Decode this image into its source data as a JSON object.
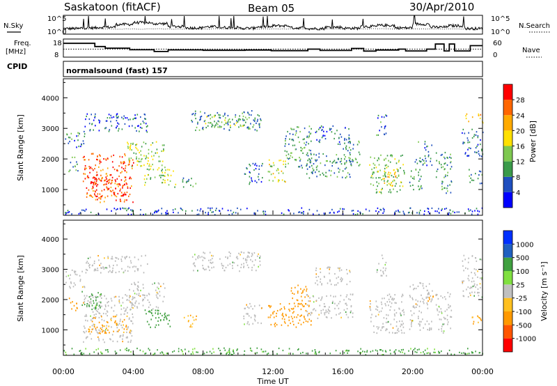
{
  "header": {
    "station": "Saskatoon (fitACF)",
    "beam": "Beam 05",
    "date": "30/Apr/2010"
  },
  "strip_labels": {
    "nsky": "N.Sky",
    "nsearch": "N.Search",
    "freq_line1": "Freq.",
    "freq_line2": "[MHz]",
    "nave": "Nave",
    "cpid": "CPID",
    "cpid_value": "normalsound (fast) 157"
  },
  "colors": {
    "power_scale": [
      "#0000ff",
      "#1f4fbf",
      "#3a9a4a",
      "#7ec850",
      "#ffe000",
      "#ffaa00",
      "#ff6600",
      "#ff0000"
    ],
    "velocity_scale": [
      "#ff0000",
      "#ff5500",
      "#ff9900",
      "#ffc020",
      "#c0c0c0",
      "#80e040",
      "#40a040",
      "#2060c0",
      "#0030ff"
    ],
    "ground_scatter": "#bbbbbb"
  },
  "chart_data": [
    {
      "type": "line",
      "panel": "noise",
      "y_ticks": [
        "10^5",
        "10^0"
      ],
      "y_ticks_right": [
        "10^5",
        "10^0"
      ],
      "series": [
        {
          "name": "N.Sky",
          "values": [
            1.4,
            1.6,
            1.8,
            2.6,
            3.1,
            2.8,
            2.0,
            1.6,
            1.9,
            1.7,
            1.5,
            1.9,
            2.2,
            1.6,
            1.4,
            1.8,
            1.5,
            2.0,
            2.3,
            1.6,
            2.7,
            1.8,
            2.2,
            1.4
          ]
        }
      ],
      "x": [
        0,
        1,
        2,
        3,
        4,
        5,
        6,
        7,
        8,
        9,
        10,
        11,
        12,
        13,
        14,
        15,
        16,
        17,
        18,
        19,
        20,
        21,
        22,
        23
      ]
    },
    {
      "type": "line",
      "panel": "frequency",
      "y_ticks": [
        "18",
        "8"
      ],
      "y_ticks_right": [
        "60",
        "0"
      ],
      "ylim": [
        8,
        18
      ],
      "series": [
        {
          "name": "Freq.",
          "values": [
            [
              0,
              16.5
            ],
            [
              1.8,
              14.3
            ],
            [
              2.4,
              13.2
            ],
            [
              3.8,
              12.1
            ],
            [
              5.2,
              10.9
            ],
            [
              6.0,
              12.0
            ],
            [
              8.0,
              11.7
            ],
            [
              10.4,
              11.9
            ],
            [
              11.9,
              11.5
            ],
            [
              14.0,
              12.5
            ],
            [
              14.7,
              11.6
            ],
            [
              16.5,
              13.0
            ],
            [
              17.2,
              11.2
            ],
            [
              17.9,
              11.9
            ],
            [
              19.2,
              12.5
            ],
            [
              19.6,
              11.3
            ],
            [
              20.8,
              12.5
            ],
            [
              21.3,
              16.0
            ],
            [
              21.8,
              11.3
            ],
            [
              22.1,
              16.0
            ],
            [
              22.4,
              11.3
            ],
            [
              23.3,
              14.9
            ],
            [
              24,
              14.9
            ]
          ]
        },
        {
          "name": "Nave",
          "values": [
            [
              0,
              12.5
            ],
            [
              24,
              12.5
            ]
          ]
        }
      ],
      "xlim": [
        0,
        24
      ]
    },
    {
      "type": "heatmap",
      "panel": "power",
      "ylabel": "Slant Range [km]",
      "y_ticks": [
        1000,
        2000,
        3000,
        4000
      ],
      "ylim": [
        180,
        4600
      ],
      "xlim": [
        0,
        24
      ],
      "colorbar_label": "Power [dB]",
      "colorbar_ticks": [
        4,
        8,
        12,
        16,
        20,
        24,
        28
      ],
      "regions": [
        {
          "t0": 1.1,
          "t1": 4.0,
          "r0": 600,
          "r1": 2200,
          "level": 26
        },
        {
          "t0": 1.5,
          "t1": 3.8,
          "r0": 800,
          "r1": 1500,
          "level": 29
        },
        {
          "t0": 0.1,
          "t1": 1.2,
          "r0": 2400,
          "r1": 3000,
          "level": 8
        },
        {
          "t0": 0.2,
          "t1": 0.8,
          "r0": 1600,
          "r1": 2100,
          "level": 10
        },
        {
          "t0": 1.2,
          "t1": 4.8,
          "r0": 2900,
          "r1": 3500,
          "level": 6
        },
        {
          "t0": 3.6,
          "t1": 5.8,
          "r0": 1700,
          "r1": 2600,
          "level": 14
        },
        {
          "t0": 4.6,
          "t1": 6.4,
          "r0": 1100,
          "r1": 1700,
          "level": 14
        },
        {
          "t0": 6.8,
          "t1": 7.6,
          "r0": 1100,
          "r1": 1500,
          "level": 11
        },
        {
          "t0": 7.3,
          "t1": 11.3,
          "r0": 2950,
          "r1": 3600,
          "level": 9
        },
        {
          "t0": 8.0,
          "t1": 10.5,
          "r0": 3050,
          "r1": 3450,
          "level": 13
        },
        {
          "t0": 10.3,
          "t1": 11.4,
          "r0": 1200,
          "r1": 1900,
          "level": 7
        },
        {
          "t0": 11.7,
          "t1": 12.7,
          "r0": 1200,
          "r1": 2000,
          "level": 16
        },
        {
          "t0": 12.6,
          "t1": 14.2,
          "r0": 1700,
          "r1": 3100,
          "level": 11
        },
        {
          "t0": 13.9,
          "t1": 16.6,
          "r0": 1400,
          "r1": 2200,
          "level": 10
        },
        {
          "t0": 14.4,
          "t1": 16.4,
          "r0": 2500,
          "r1": 3100,
          "level": 8
        },
        {
          "t0": 16.0,
          "t1": 17.0,
          "r0": 1800,
          "r1": 2600,
          "level": 9
        },
        {
          "t0": 17.5,
          "t1": 19.5,
          "r0": 900,
          "r1": 2200,
          "level": 13
        },
        {
          "t0": 18.3,
          "t1": 19.2,
          "r0": 1100,
          "r1": 1700,
          "level": 20
        },
        {
          "t0": 17.9,
          "t1": 18.5,
          "r0": 2800,
          "r1": 3500,
          "level": 8
        },
        {
          "t0": 19.8,
          "t1": 20.5,
          "r0": 1000,
          "r1": 2000,
          "level": 9
        },
        {
          "t0": 20.3,
          "t1": 21.1,
          "r0": 1800,
          "r1": 2600,
          "level": 8
        },
        {
          "t0": 21.3,
          "t1": 22.2,
          "r0": 900,
          "r1": 2300,
          "level": 10
        },
        {
          "t0": 22.8,
          "t1": 24.0,
          "r0": 2100,
          "r1": 3000,
          "level": 7
        },
        {
          "t0": 23.0,
          "t1": 24.0,
          "r0": 3200,
          "r1": 3500,
          "level": 20
        },
        {
          "t0": 23.2,
          "t1": 24.0,
          "r0": 1200,
          "r1": 1700,
          "level": 9
        },
        {
          "t0": 0.0,
          "t1": 24.0,
          "r0": 200,
          "r1": 420,
          "level": 5
        }
      ]
    },
    {
      "type": "heatmap",
      "panel": "velocity",
      "xlabel": "Time UT",
      "ylabel": "Slant Range [km]",
      "y_ticks": [
        1000,
        2000,
        3000,
        4000
      ],
      "ylim": [
        180,
        4600
      ],
      "xlim": [
        0,
        24
      ],
      "x_ticks": [
        "00:00",
        "04:00",
        "08:00",
        "12:00",
        "16:00",
        "20:00",
        "00:00"
      ],
      "colorbar_label": "Velocity [m s⁻¹]",
      "colorbar_ticks": [
        -1000,
        -500,
        -100,
        -25,
        25,
        100,
        500,
        1000
      ],
      "regions": [
        {
          "t0": 0.1,
          "t1": 1.2,
          "r0": 2400,
          "r1": 3000,
          "v": 0
        },
        {
          "t0": 0.3,
          "t1": 0.8,
          "r0": 1600,
          "r1": 2100,
          "v": -180
        },
        {
          "t0": 1.1,
          "t1": 4.0,
          "r0": 600,
          "r1": 2200,
          "v": 0
        },
        {
          "t0": 1.4,
          "t1": 3.8,
          "r0": 900,
          "r1": 1500,
          "v": -150
        },
        {
          "t0": 1.0,
          "t1": 2.2,
          "r0": 1700,
          "r1": 2300,
          "v": 180
        },
        {
          "t0": 1.2,
          "t1": 4.8,
          "r0": 2900,
          "r1": 3500,
          "v": 0
        },
        {
          "t0": 3.6,
          "t1": 5.8,
          "r0": 1700,
          "r1": 2600,
          "v": 0
        },
        {
          "t0": 4.6,
          "t1": 6.4,
          "r0": 1100,
          "r1": 1700,
          "v": 200
        },
        {
          "t0": 6.8,
          "t1": 7.6,
          "r0": 1100,
          "r1": 1500,
          "v": -120
        },
        {
          "t0": 7.3,
          "t1": 11.3,
          "r0": 2950,
          "r1": 3600,
          "v": 0
        },
        {
          "t0": 10.3,
          "t1": 11.4,
          "r0": 1200,
          "r1": 1900,
          "v": 0
        },
        {
          "t0": 11.7,
          "t1": 14.2,
          "r0": 1100,
          "r1": 1900,
          "v": -250
        },
        {
          "t0": 13.0,
          "t1": 14.0,
          "r0": 1700,
          "r1": 2500,
          "v": -200
        },
        {
          "t0": 13.9,
          "t1": 16.6,
          "r0": 1400,
          "r1": 2200,
          "v": 0
        },
        {
          "t0": 14.4,
          "t1": 16.4,
          "r0": 2500,
          "r1": 3100,
          "v": 0
        },
        {
          "t0": 17.5,
          "t1": 19.5,
          "r0": 900,
          "r1": 2200,
          "v": 0
        },
        {
          "t0": 17.9,
          "t1": 18.5,
          "r0": 2800,
          "r1": 3500,
          "v": 0
        },
        {
          "t0": 19.8,
          "t1": 21.1,
          "r0": 1000,
          "r1": 2600,
          "v": 0
        },
        {
          "t0": 20.8,
          "t1": 21.2,
          "r0": 1900,
          "r1": 2200,
          "v": -200
        },
        {
          "t0": 21.3,
          "t1": 22.2,
          "r0": 900,
          "r1": 2300,
          "v": 0
        },
        {
          "t0": 22.8,
          "t1": 24.0,
          "r0": 2100,
          "r1": 3500,
          "v": 0
        },
        {
          "t0": 23.2,
          "t1": 24.0,
          "r0": 1200,
          "r1": 1500,
          "v": -150
        },
        {
          "t0": 0.0,
          "t1": 24.0,
          "r0": 200,
          "r1": 420,
          "v": 150
        }
      ]
    }
  ]
}
